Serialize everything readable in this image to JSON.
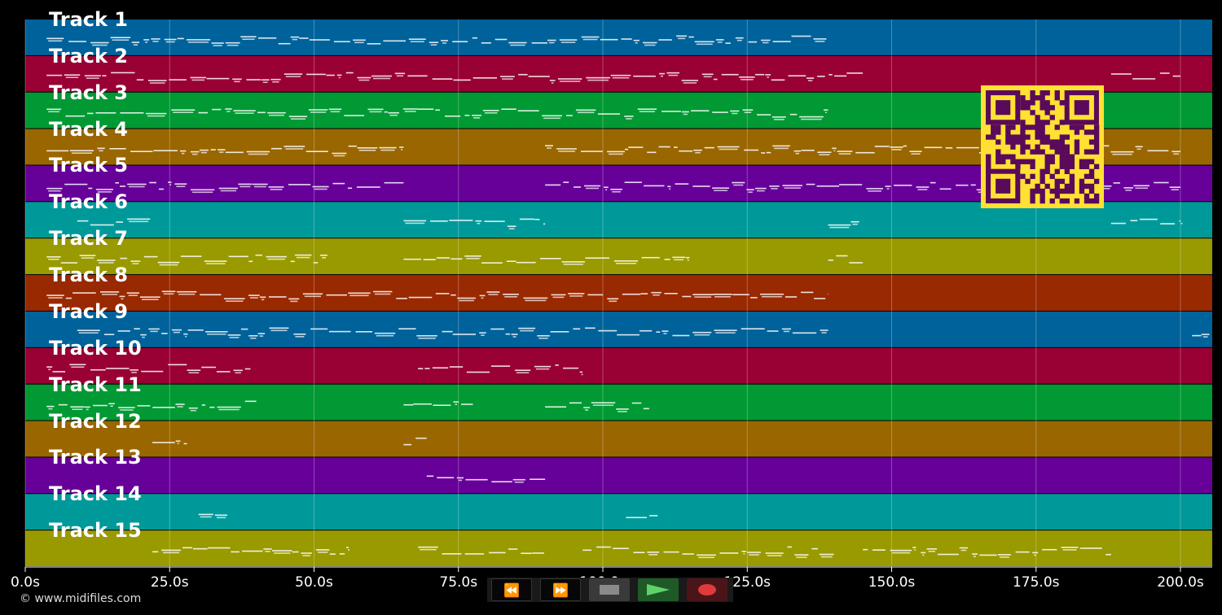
{
  "tracks": [
    {
      "label": "Track 1",
      "color": "#00629a"
    },
    {
      "label": "Track 2",
      "color": "#990033"
    },
    {
      "label": "Track 3",
      "color": "#009933"
    },
    {
      "label": "Track 4",
      "color": "#996600"
    },
    {
      "label": "Track 5",
      "color": "#660099"
    },
    {
      "label": "Track 6",
      "color": "#009999"
    },
    {
      "label": "Track 7",
      "color": "#999900"
    },
    {
      "label": "Track 8",
      "color": "#992900"
    },
    {
      "label": "Track 9",
      "color": "#00629a"
    },
    {
      "label": "Track 10",
      "color": "#990033"
    },
    {
      "label": "Track 11",
      "color": "#009933"
    },
    {
      "label": "Track 12",
      "color": "#996600"
    },
    {
      "label": "Track 13",
      "color": "#660099"
    },
    {
      "label": "Track 14",
      "color": "#009999"
    },
    {
      "label": "Track 15",
      "color": "#999900"
    }
  ],
  "timeline": {
    "max_seconds": 205.5,
    "ticks": [
      {
        "value": 0,
        "label": "0.0s"
      },
      {
        "value": 25,
        "label": "25.0s"
      },
      {
        "value": 50,
        "label": "50.0s"
      },
      {
        "value": 75,
        "label": "75.0s"
      },
      {
        "value": 100,
        "label": "100.0s"
      },
      {
        "value": 125,
        "label": "125.0s"
      },
      {
        "value": 150,
        "label": "150.0s"
      },
      {
        "value": 175,
        "label": "175.0s"
      },
      {
        "value": 200,
        "label": "200.0s"
      }
    ]
  },
  "note_segments": [
    [
      [
        3.7,
        139
      ]
    ],
    [
      [
        3.7,
        145
      ],
      [
        188,
        200
      ]
    ],
    [
      [
        3.7,
        139
      ]
    ],
    [
      [
        3.7,
        65.5
      ],
      [
        90,
        200
      ]
    ],
    [
      [
        3.7,
        65.5
      ],
      [
        90,
        200
      ]
    ],
    [
      [
        9,
        22
      ],
      [
        65.5,
        90
      ],
      [
        139,
        145
      ],
      [
        188,
        200
      ]
    ],
    [
      [
        3.7,
        53
      ],
      [
        65.5,
        115
      ],
      [
        139,
        145
      ]
    ],
    [
      [
        3.7,
        139
      ]
    ],
    [
      [
        9,
        139
      ],
      [
        202,
        205
      ]
    ],
    [
      [
        3.7,
        39
      ],
      [
        68,
        96.5
      ]
    ],
    [
      [
        3.7,
        40
      ],
      [
        65.5,
        77.5
      ],
      [
        90,
        108
      ]
    ],
    [
      [
        22,
        28
      ],
      [
        65.5,
        69.5
      ]
    ],
    [
      [
        69.5,
        90
      ]
    ],
    [
      [
        30,
        35
      ],
      [
        104,
        109.5
      ]
    ],
    [
      [
        22,
        56
      ],
      [
        68,
        90
      ],
      [
        96.5,
        140
      ],
      [
        145,
        188
      ]
    ]
  ],
  "controls": {
    "rewind_glyph": "⏪",
    "forward_glyph": "⏩",
    "stop_color": "#8a8a8a",
    "play_color": "#5fd36a",
    "record_color": "#e03a3a"
  },
  "qr": {
    "fg": "#5a0a5a",
    "bg": "#ffe033"
  },
  "footer": {
    "copyright": "© www.midifiles.com"
  }
}
